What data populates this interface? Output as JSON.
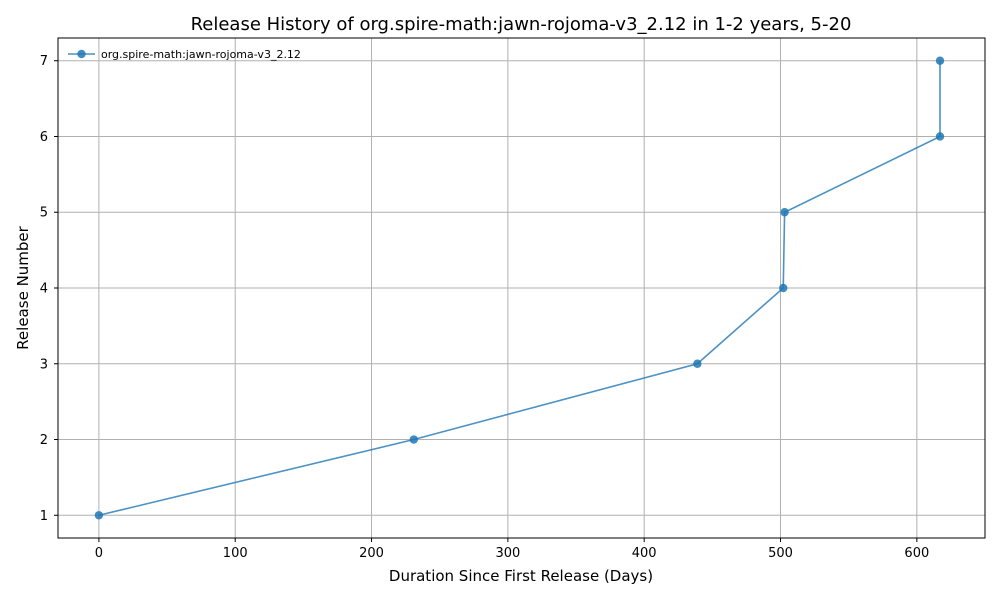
{
  "chart_data": {
    "type": "line",
    "title": "Release History of org.spire-math:jawn-rojoma-v3_2.12 in 1-2 years, 5-20",
    "xlabel": "Duration Since First Release (Days)",
    "ylabel": "Release Number",
    "xlim": [
      -30,
      650
    ],
    "ylim": [
      0.7,
      7.3
    ],
    "xticks": [
      0,
      100,
      200,
      300,
      400,
      500,
      600
    ],
    "yticks": [
      1,
      2,
      3,
      4,
      5,
      6,
      7
    ],
    "grid": true,
    "legend_position": "top-left",
    "series": [
      {
        "name": "org.spire-math:jawn-rojoma-v3_2.12",
        "color": "#1f77b4",
        "x": [
          0,
          231,
          439,
          502,
          503,
          617,
          617
        ],
        "y": [
          1,
          2,
          3,
          4,
          5,
          6,
          7
        ]
      }
    ]
  }
}
